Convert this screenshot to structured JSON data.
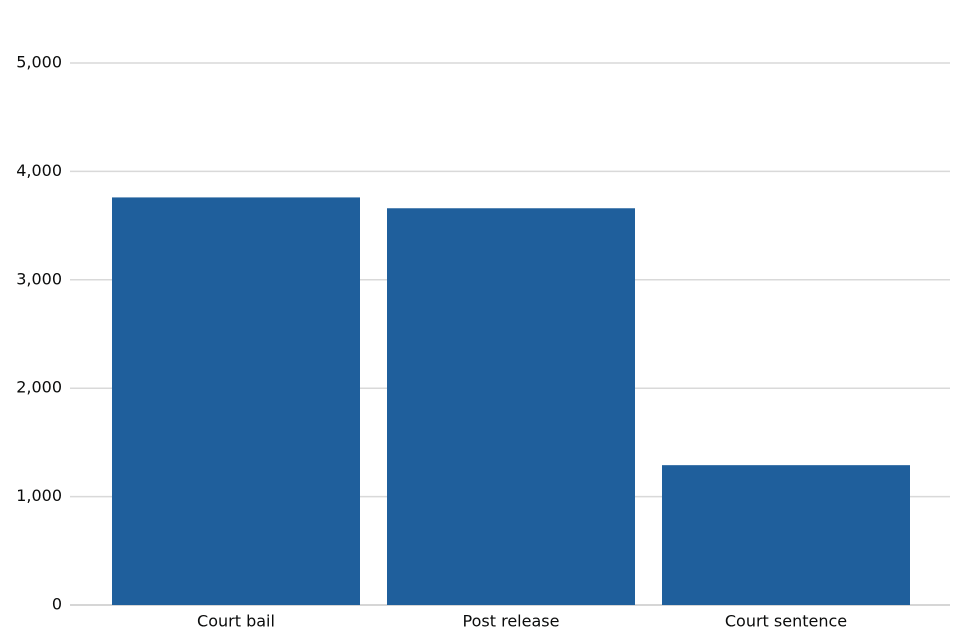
{
  "chart_data": {
    "type": "bar",
    "categories": [
      "Court bail",
      "Post release",
      "Court sentence"
    ],
    "values": [
      3760,
      3660,
      1290
    ],
    "color": "#1f5f9c",
    "ylim": [
      0,
      5000
    ],
    "yticks": [
      0,
      {
        "value": 1000,
        "label": "1,000"
      },
      {
        "value": 2000,
        "label": "2,000"
      },
      {
        "value": 3000,
        "label": "3,000"
      },
      {
        "value": 4000,
        "label": "4,000"
      },
      {
        "value": 5000,
        "label": "5,000"
      }
    ],
    "grid": true
  }
}
